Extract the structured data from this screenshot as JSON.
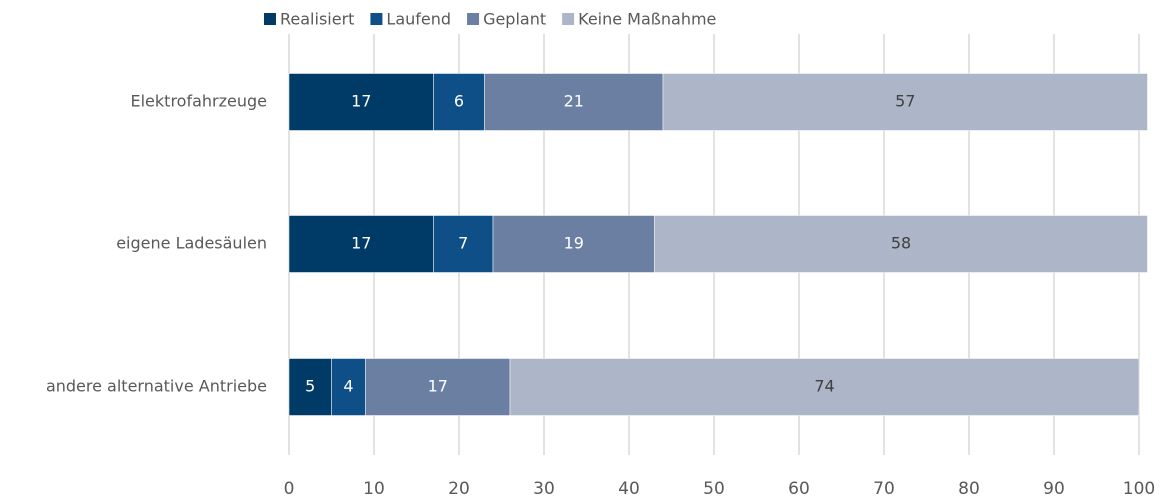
{
  "chart_data": {
    "type": "stacked_barh",
    "categories": [
      "Elektrofahrzeuge",
      "eigene Ladesäulen",
      "andere alternative Antriebe"
    ],
    "series": [
      {
        "name": "Realisiert",
        "color": "#003a66",
        "values": [
          17,
          17,
          5
        ]
      },
      {
        "name": "Laufend",
        "color": "#0e4f87",
        "values": [
          6,
          7,
          4
        ]
      },
      {
        "name": "Geplant",
        "color": "#6b7fa3",
        "values": [
          21,
          19,
          17
        ]
      },
      {
        "name": "Keine Maßnahme",
        "color": "#adb5c8",
        "values": [
          57,
          58,
          74
        ]
      }
    ],
    "xlim": [
      0,
      100
    ],
    "xticks": [
      0,
      10,
      20,
      30,
      40,
      50,
      60,
      70,
      80,
      90,
      100
    ],
    "grid": true,
    "legend": "top"
  }
}
